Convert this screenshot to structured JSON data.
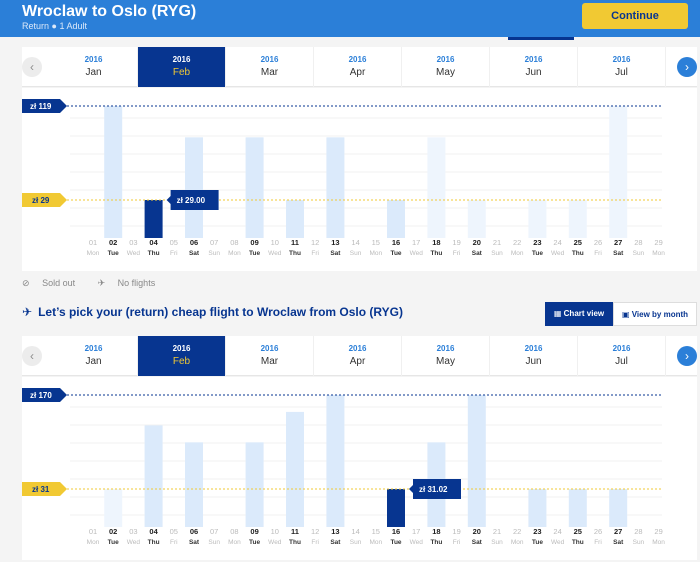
{
  "header": {
    "title": "Wroclaw to Oslo (RYG)",
    "subtitle": "Return ● 1 Adult",
    "continue_label": "Continue"
  },
  "months": [
    {
      "year": "2016",
      "month": "Jan"
    },
    {
      "year": "2016",
      "month": "Feb"
    },
    {
      "year": "2016",
      "month": "Mar"
    },
    {
      "year": "2016",
      "month": "Apr"
    },
    {
      "year": "2016",
      "month": "May"
    },
    {
      "year": "2016",
      "month": "Jun"
    },
    {
      "year": "2016",
      "month": "Jul"
    }
  ],
  "active_month_index": 1,
  "days": [
    {
      "n": "01",
      "d": "Mon"
    },
    {
      "n": "02",
      "d": "Tue"
    },
    {
      "n": "03",
      "d": "Wed"
    },
    {
      "n": "04",
      "d": "Thu"
    },
    {
      "n": "05",
      "d": "Fri"
    },
    {
      "n": "06",
      "d": "Sat"
    },
    {
      "n": "07",
      "d": "Sun"
    },
    {
      "n": "08",
      "d": "Mon"
    },
    {
      "n": "09",
      "d": "Tue"
    },
    {
      "n": "10",
      "d": "Wed"
    },
    {
      "n": "11",
      "d": "Thu"
    },
    {
      "n": "12",
      "d": "Fri"
    },
    {
      "n": "13",
      "d": "Sat"
    },
    {
      "n": "14",
      "d": "Sun"
    },
    {
      "n": "15",
      "d": "Mon"
    },
    {
      "n": "16",
      "d": "Tue"
    },
    {
      "n": "17",
      "d": "Wed"
    },
    {
      "n": "18",
      "d": "Thu"
    },
    {
      "n": "19",
      "d": "Fri"
    },
    {
      "n": "20",
      "d": "Sat"
    },
    {
      "n": "21",
      "d": "Sun"
    },
    {
      "n": "22",
      "d": "Mon"
    },
    {
      "n": "23",
      "d": "Tue"
    },
    {
      "n": "24",
      "d": "Wed"
    },
    {
      "n": "25",
      "d": "Thu"
    },
    {
      "n": "26",
      "d": "Fri"
    },
    {
      "n": "27",
      "d": "Sat"
    },
    {
      "n": "28",
      "d": "Sun"
    },
    {
      "n": "29",
      "d": "Mon"
    }
  ],
  "legend": {
    "sold_out": "Sold out",
    "no_flights": "No flights"
  },
  "return_heading": "Let’s pick your (return) cheap flight to Wroclaw from Oslo (RYG)",
  "view": {
    "chart_label": "Chart view",
    "month_label": "View by month"
  },
  "colors": {
    "navy": "#073590",
    "blue": "#2b7fd8",
    "yellow": "#f1c933",
    "bar": "#dbeafb",
    "bar_faded": "#eef5fd"
  },
  "chart_data": [
    {
      "type": "bar",
      "max_label": "zł 119",
      "min_label": "zł 29",
      "selected_label": "zł 29.00",
      "selected_index": 3,
      "max_value": 119,
      "min_value": 29,
      "values": [
        null,
        119,
        null,
        29,
        null,
        89,
        null,
        null,
        89,
        null,
        29,
        null,
        89,
        null,
        null,
        29,
        null,
        89,
        null,
        29,
        null,
        null,
        29,
        null,
        29,
        null,
        119,
        null,
        null
      ],
      "faded": [
        false,
        false,
        false,
        false,
        false,
        false,
        false,
        false,
        false,
        false,
        false,
        false,
        false,
        false,
        false,
        false,
        false,
        true,
        false,
        true,
        false,
        false,
        true,
        false,
        true,
        false,
        true,
        false,
        false
      ],
      "bold": [
        false,
        true,
        false,
        true,
        false,
        true,
        false,
        false,
        true,
        false,
        true,
        false,
        true,
        false,
        false,
        true,
        false,
        true,
        false,
        true,
        false,
        false,
        true,
        false,
        true,
        false,
        true,
        false,
        false
      ]
    },
    {
      "type": "bar",
      "max_label": "zł 170",
      "min_label": "zł 31",
      "selected_label": "zł 31.02",
      "selected_index": 15,
      "max_value": 170,
      "min_value": 31,
      "values": [
        null,
        31,
        null,
        125,
        null,
        100,
        null,
        null,
        100,
        null,
        145,
        null,
        170,
        null,
        null,
        31,
        null,
        100,
        null,
        170,
        null,
        null,
        31,
        null,
        31,
        null,
        31,
        null,
        null
      ],
      "faded": [
        false,
        true,
        false,
        false,
        false,
        false,
        false,
        false,
        false,
        false,
        false,
        false,
        false,
        false,
        false,
        false,
        false,
        false,
        false,
        false,
        false,
        false,
        false,
        false,
        false,
        false,
        false,
        false,
        false
      ],
      "bold": [
        false,
        true,
        false,
        true,
        false,
        true,
        false,
        false,
        true,
        false,
        true,
        false,
        true,
        false,
        false,
        true,
        false,
        true,
        false,
        true,
        false,
        false,
        true,
        false,
        true,
        false,
        true,
        false,
        false
      ]
    }
  ]
}
